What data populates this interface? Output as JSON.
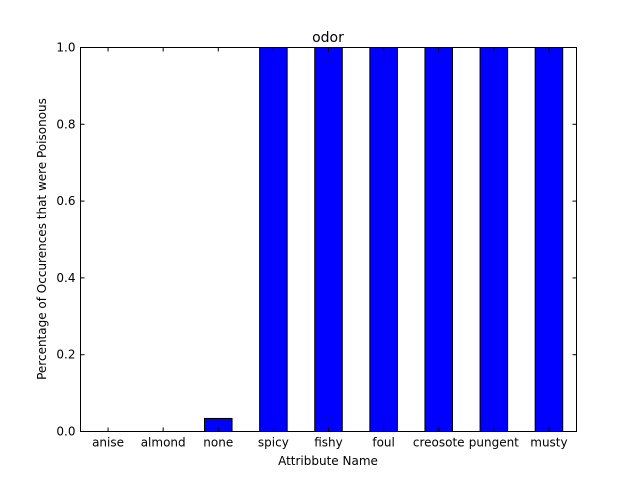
{
  "chart_data": {
    "type": "bar",
    "title": "odor",
    "xlabel": "Attribbute Name",
    "ylabel": "Percentage of Occurences that were Poisonous",
    "categories": [
      "anise",
      "almond",
      "none",
      "spicy",
      "fishy",
      "foul",
      "creosote",
      "pungent",
      "musty"
    ],
    "values": [
      0,
      0,
      0.034,
      1,
      1,
      1,
      1,
      1,
      1
    ],
    "ylim": [
      0,
      1
    ],
    "yticks": [
      "0.0",
      "0.2",
      "0.4",
      "0.6",
      "0.8",
      "1.0"
    ],
    "grid": false,
    "legend": "none",
    "bar_color": "#0000ff",
    "edge_color": "#000000"
  }
}
